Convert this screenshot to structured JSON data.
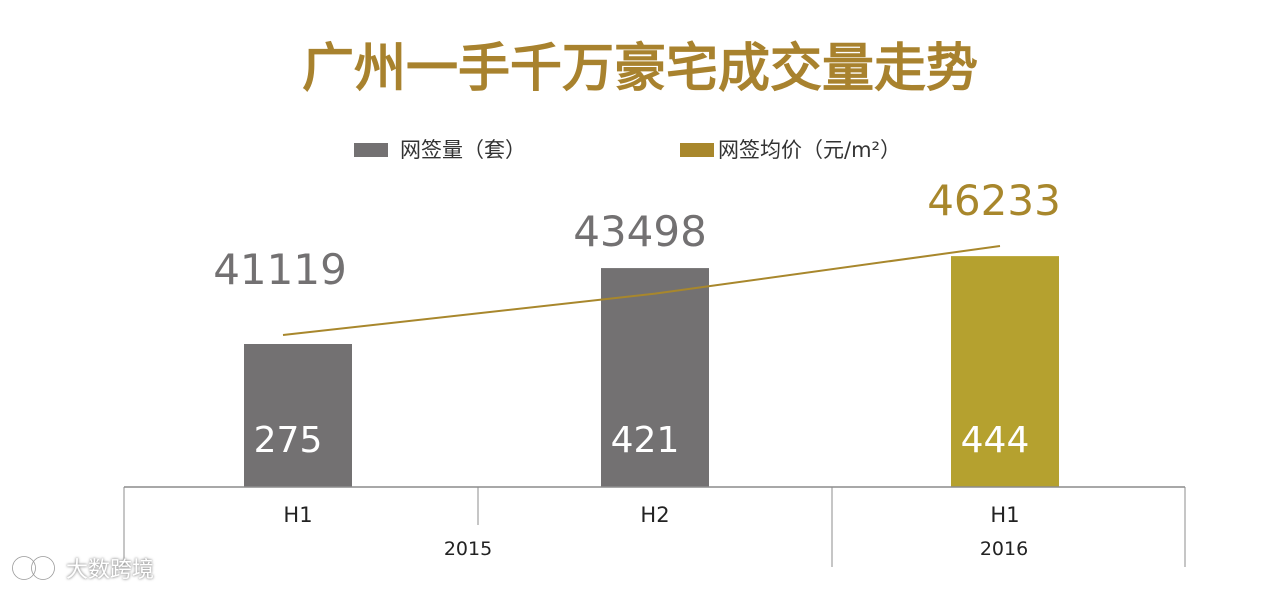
{
  "colors": {
    "volume_bar": "#737172",
    "volume_bar_2016": "#B5A12F",
    "price_line": "#A8872C",
    "title": "#A8822E",
    "price_label": "#737172",
    "price_label_2016": "#A8872C",
    "axis": "#8C8C8C"
  },
  "chart_data": {
    "type": "bar",
    "title": "广州一手千万豪宅成交量走势",
    "categories": [
      "H1",
      "H2",
      "H1"
    ],
    "groups": [
      {
        "label": "2015",
        "categories": [
          "H1",
          "H2"
        ]
      },
      {
        "label": "2016",
        "categories": [
          "H1"
        ]
      }
    ],
    "series": [
      {
        "name": "网签量（套）",
        "type": "bar",
        "values": [
          275,
          421,
          444
        ]
      },
      {
        "name": "网签均价（元/m²）",
        "type": "line",
        "values": [
          41119,
          43498,
          46233
        ]
      }
    ],
    "legend": {
      "placement": "top-center"
    },
    "grid": false
  },
  "watermark": {
    "text": "大数跨境"
  }
}
